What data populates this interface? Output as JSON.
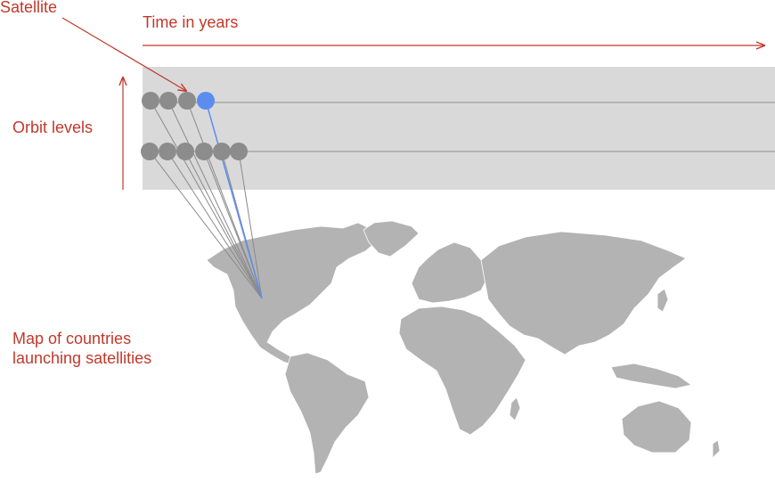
{
  "annotations": {
    "satellite": "Satellite",
    "time_axis": "Time in years",
    "orbit_axis": "Orbit levels",
    "map_line1": "Map of countries",
    "map_line2": "launching satellities"
  },
  "colors": {
    "annotation": "#c0392b",
    "band": "#d9d9d9",
    "satellite": "#8c8c8c",
    "satellite_highlight": "#5b8def",
    "link": "#8a8a8a",
    "map": "#b3b3b3"
  },
  "orbit_levels": [
    {
      "level": 1,
      "satellites": 4,
      "highlighted_index": 3
    },
    {
      "level": 2,
      "satellites": 6,
      "highlighted_index": null
    }
  ]
}
